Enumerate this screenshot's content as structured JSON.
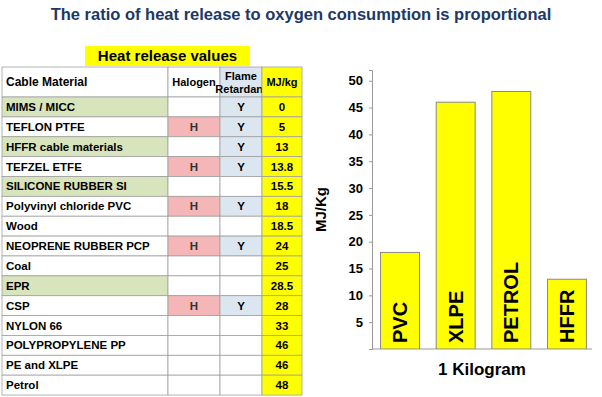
{
  "title": "The ratio of heat release to oxygen consumption is proportional",
  "table": {
    "title": "Heat release values",
    "columns": [
      "Cable Material",
      "Halogen",
      "Flame Retardant",
      "MJ/kg"
    ],
    "rows": [
      [
        "MIMS / MICC",
        null,
        "Y",
        0
      ],
      [
        "TEFLON  PTFE",
        "H",
        "Y",
        5
      ],
      [
        "HFFR cable materials",
        null,
        "Y",
        13
      ],
      [
        "TEFZEL  ETFE",
        "H",
        "Y",
        13.8
      ],
      [
        "SILICONE RUBBER SI",
        null,
        null,
        15.5
      ],
      [
        "Polyvinyl chloride PVC",
        "H",
        "Y",
        18
      ],
      [
        "Wood",
        null,
        null,
        18.5
      ],
      [
        "NEOPRENE RUBBER PCP",
        "H",
        "Y",
        24
      ],
      [
        "Coal",
        null,
        null,
        25
      ],
      [
        "EPR",
        null,
        null,
        28.5
      ],
      [
        "CSP",
        "H",
        "Y",
        28
      ],
      [
        "NYLON 66",
        null,
        null,
        33
      ],
      [
        "POLYPROPYLENE  PP",
        null,
        null,
        46
      ],
      [
        "PE and XLPE",
        null,
        null,
        46
      ],
      [
        "Petrol",
        null,
        null,
        48
      ]
    ]
  },
  "chart_data": {
    "type": "bar",
    "categories": [
      "PVC",
      "XLPE",
      "PETROL",
      "HFFR"
    ],
    "values": [
      18,
      46,
      48,
      13
    ],
    "color": "#ffff00",
    "ylim": [
      0,
      52
    ],
    "yticks": [
      5,
      10,
      15,
      20,
      25,
      30,
      35,
      40,
      45,
      50
    ],
    "y_label": "MJ/Kg",
    "x_label": "1 Kilogram",
    "tick_labels": "y"
  }
}
